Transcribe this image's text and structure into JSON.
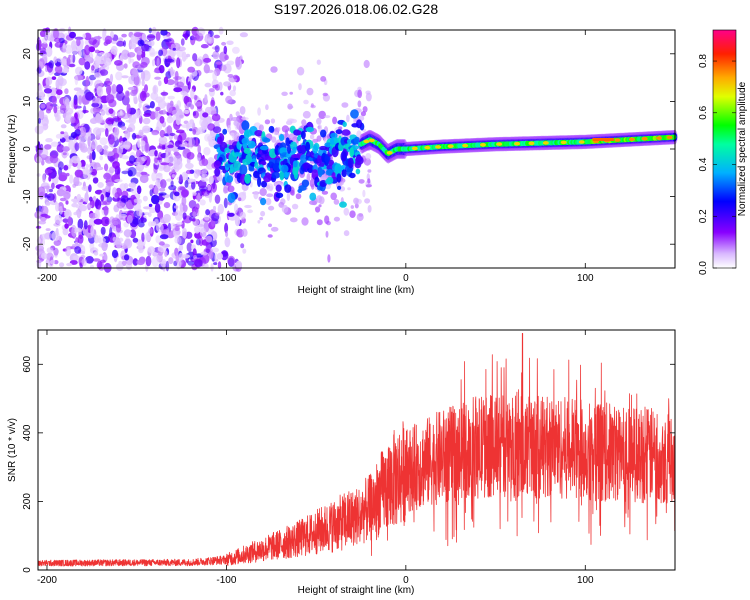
{
  "title": "S197.2026.018.06.02.G28",
  "chart_data": [
    {
      "type": "heatmap",
      "xlabel": "Height of straight line (km)",
      "ylabel": "Frequency (Hz)",
      "xlim": [
        -205,
        150
      ],
      "ylim": [
        -25,
        25
      ],
      "xticks": [
        -200,
        -100,
        0,
        100
      ],
      "yticks": [
        -20,
        -10,
        0,
        10,
        20
      ],
      "colorbar": {
        "label": "Normalized spectral amplitude",
        "range": [
          0,
          0.92
        ],
        "ticks": [
          "0.0",
          "0.2",
          "0.4",
          "0.6",
          "0.8"
        ],
        "tick_values": [
          0,
          0.2,
          0.4,
          0.6,
          0.8
        ]
      },
      "ridge": {
        "x": [
          -205,
          -100,
          -75,
          -55,
          -40,
          -30,
          -25,
          -20,
          -15,
          -10,
          -5,
          0,
          20,
          50,
          100,
          150
        ],
        "freq_hz": [
          0,
          -2,
          -3,
          -1,
          -3,
          -1,
          1,
          2,
          1,
          -1,
          0,
          0,
          0.5,
          1,
          1.5,
          2.5
        ]
      }
    },
    {
      "type": "line",
      "xlabel": "Height of straight line (km)",
      "ylabel": "SNR (10 * v/v)",
      "xlim": [
        -205,
        150
      ],
      "ylim": [
        0,
        700
      ],
      "xticks": [
        -200,
        -100,
        0,
        100
      ],
      "yticks": [
        0,
        200,
        400,
        600
      ],
      "series": [
        {
          "name": "SNR",
          "color": "#ee3333",
          "trend_x": [
            -205,
            -120,
            -100,
            -80,
            -60,
            -40,
            -30,
            -20,
            -10,
            0,
            20,
            40,
            60,
            80,
            100,
            120,
            150
          ],
          "trend_y": [
            20,
            22,
            30,
            60,
            90,
            130,
            150,
            180,
            250,
            290,
            330,
            360,
            360,
            360,
            350,
            340,
            330
          ],
          "peak_x": 65,
          "peak_y": 690
        }
      ]
    }
  ]
}
